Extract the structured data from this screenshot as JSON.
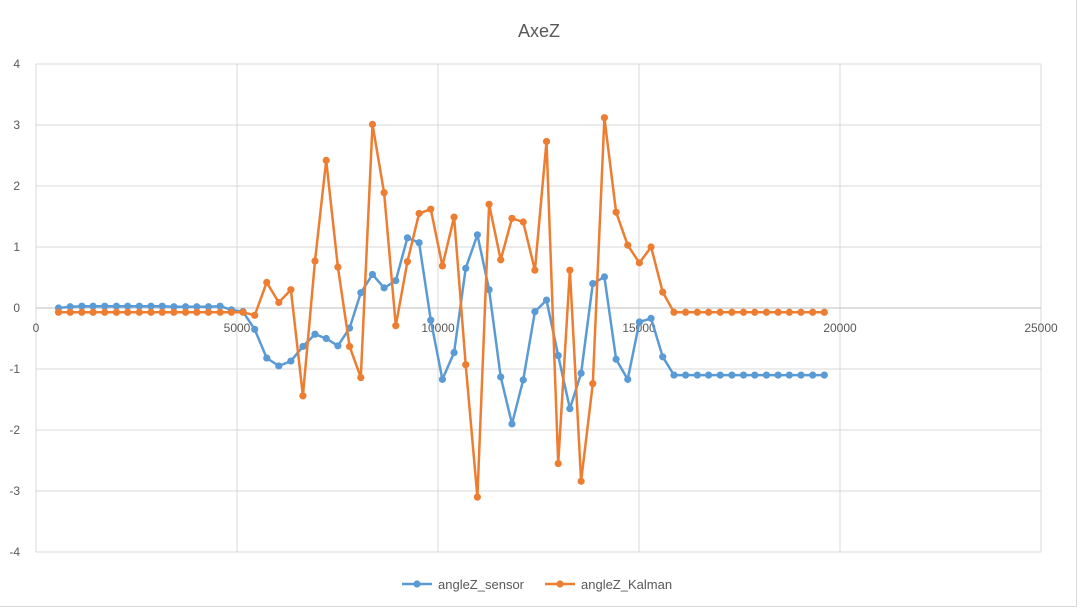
{
  "chart_data": {
    "type": "line",
    "title": "AxeZ",
    "xlabel": "",
    "ylabel": "",
    "xlim": [
      0,
      25000
    ],
    "ylim": [
      -4,
      4
    ],
    "x_ticks": [
      0,
      5000,
      10000,
      15000,
      20000,
      25000
    ],
    "y_ticks": [
      -4,
      -3,
      -2,
      -1,
      0,
      1,
      2,
      3,
      4
    ],
    "grid": true,
    "legend_position": "bottom",
    "series": [
      {
        "name": "angleZ_sensor",
        "color": "#5B9BD5",
        "x": [
          560,
          850,
          1140,
          1420,
          1710,
          2000,
          2280,
          2570,
          2860,
          3140,
          3430,
          3720,
          4000,
          4290,
          4580,
          4860,
          5150,
          5440,
          5740,
          6040,
          6340,
          6640,
          6940,
          7220,
          7510,
          7800,
          8080,
          8370,
          8660,
          8950,
          9240,
          9530,
          9820,
          10110,
          10400,
          10690,
          10980,
          11270,
          11560,
          11840,
          12120,
          12410,
          12700,
          12990,
          13280,
          13560,
          13850,
          14140,
          14430,
          14720,
          15010,
          15300,
          15590,
          15870,
          16160,
          16450,
          16730,
          17020,
          17310,
          17600,
          17880,
          18170,
          18460,
          18740,
          19030,
          19320,
          19610
        ],
        "values": [
          0.0,
          0.02,
          0.03,
          0.03,
          0.03,
          0.03,
          0.03,
          0.03,
          0.03,
          0.03,
          0.02,
          0.02,
          0.02,
          0.02,
          0.03,
          -0.03,
          -0.06,
          -0.35,
          -0.82,
          -0.95,
          -0.87,
          -0.63,
          -0.43,
          -0.5,
          -0.62,
          -0.33,
          0.25,
          0.55,
          0.33,
          0.45,
          1.15,
          1.07,
          -0.2,
          -1.17,
          -0.73,
          0.65,
          1.2,
          0.3,
          -1.13,
          -1.9,
          -1.18,
          -0.06,
          0.13,
          -0.78,
          -1.65,
          -1.07,
          0.4,
          0.51,
          -0.84,
          -1.17,
          -0.23,
          -0.17,
          -0.8,
          -1.1,
          -1.1,
          -1.1,
          -1.1,
          -1.1,
          -1.1,
          -1.1,
          -1.1,
          -1.1,
          -1.1,
          -1.1,
          -1.1,
          -1.1,
          -1.1
        ]
      },
      {
        "name": "angleZ_Kalman",
        "color": "#ED7D31",
        "x": [
          560,
          850,
          1140,
          1420,
          1710,
          2000,
          2280,
          2570,
          2860,
          3140,
          3430,
          3720,
          4000,
          4290,
          4580,
          4860,
          5150,
          5440,
          5740,
          6040,
          6340,
          6640,
          6940,
          7220,
          7510,
          7800,
          8080,
          8370,
          8660,
          8950,
          9240,
          9530,
          9820,
          10110,
          10400,
          10690,
          10980,
          11270,
          11560,
          11840,
          12120,
          12410,
          12700,
          12990,
          13280,
          13560,
          13850,
          14140,
          14430,
          14720,
          15010,
          15300,
          15590,
          15870,
          16160,
          16450,
          16730,
          17020,
          17310,
          17600,
          17880,
          18170,
          18460,
          18740,
          19030,
          19320,
          19610
        ],
        "values": [
          -0.07,
          -0.07,
          -0.07,
          -0.07,
          -0.07,
          -0.07,
          -0.07,
          -0.07,
          -0.07,
          -0.07,
          -0.07,
          -0.07,
          -0.07,
          -0.07,
          -0.07,
          -0.07,
          -0.07,
          -0.12,
          0.42,
          0.09,
          0.3,
          -1.44,
          0.77,
          2.42,
          0.67,
          -0.63,
          -1.14,
          3.01,
          1.89,
          -0.29,
          0.76,
          1.55,
          1.62,
          0.69,
          1.49,
          -0.93,
          -3.1,
          1.7,
          0.79,
          1.47,
          1.41,
          0.62,
          2.73,
          -2.55,
          0.62,
          -2.84,
          -1.24,
          3.12,
          1.57,
          1.03,
          0.74,
          1.0,
          0.26,
          -0.07,
          -0.07,
          -0.07,
          -0.07,
          -0.07,
          -0.07,
          -0.07,
          -0.07,
          -0.07,
          -0.07,
          -0.07,
          -0.07,
          -0.07,
          -0.07
        ]
      }
    ]
  }
}
